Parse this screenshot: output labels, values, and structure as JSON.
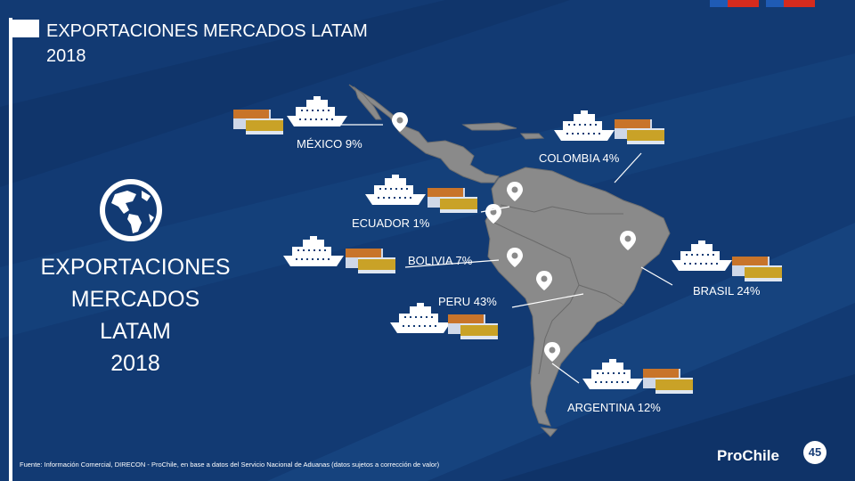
{
  "title": {
    "line1": "EXPORTACIONES MERCADOS LATAM",
    "line2": "2018"
  },
  "big_label": {
    "line1": "EXPORTACIONES",
    "line2": "MERCADOS",
    "line3": "LATAM",
    "line4": "2018"
  },
  "countries": {
    "mexico": "MÉXICO 9%",
    "colombia": "COLOMBIA 4%",
    "ecuador": "ECUADOR 1%",
    "bolivia": "BOLIVIA 7%",
    "brasil": "BRASIL 24%",
    "peru": "PERU 43%",
    "argentina": "ARGENTINA 12%"
  },
  "footer": "Fuente: Información Comercial, DIRECON - ProChile, en base a datos del Servicio Nacional de Aduanas (datos sujetos a corrección de valor)",
  "logo": {
    "name": "ProChile",
    "badge": "45"
  },
  "colors": {
    "background": "#123a73",
    "land": "#8a8a8a",
    "container_orange": "#c8742a",
    "container_gold": "#c9a227",
    "ship": "#ffffff"
  },
  "icons": [
    "globe-icon",
    "ship-icon",
    "container-icon",
    "location-pin-icon"
  ]
}
